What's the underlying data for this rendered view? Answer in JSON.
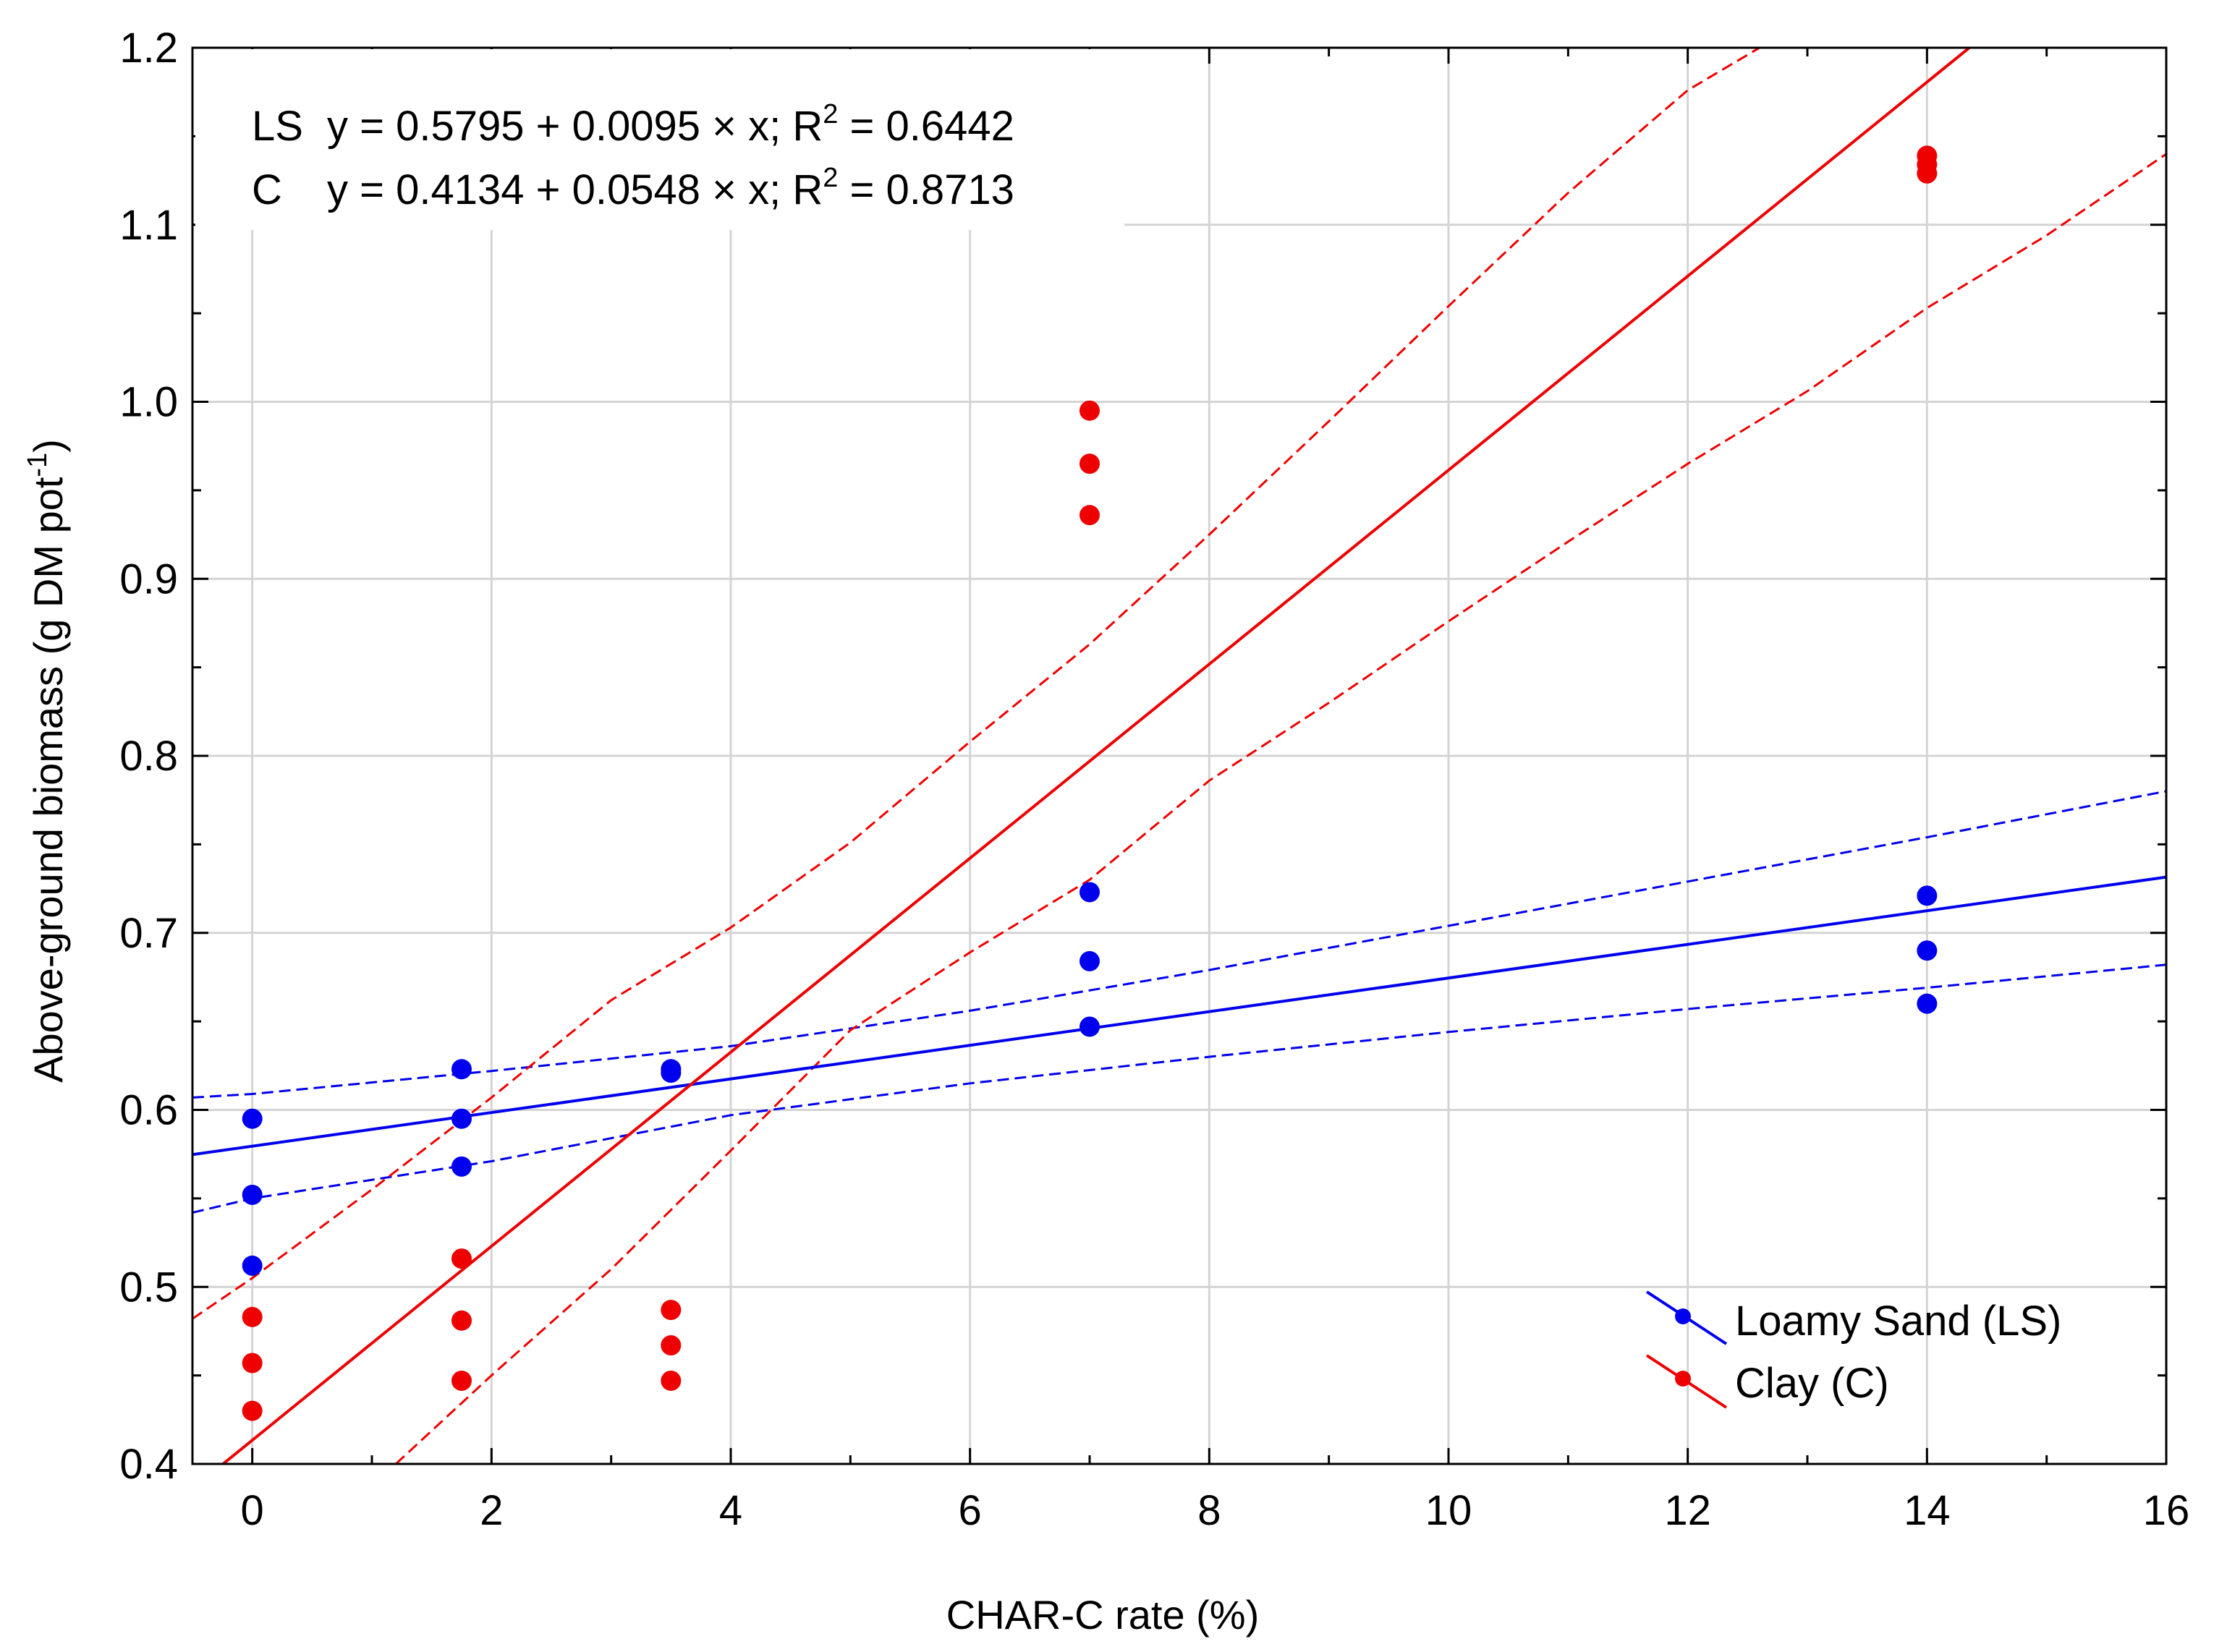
{
  "chart_data": {
    "type": "scatter",
    "xlabel": "CHAR-C rate (%)",
    "ylabel_main": "Above-ground biomass (g DM pot",
    "ylabel_sup": "-1",
    "ylabel_close": ")",
    "xlim": [
      -0.5,
      16
    ],
    "ylim": [
      0.4,
      1.2
    ],
    "x_ticks": [
      0,
      2,
      4,
      6,
      8,
      10,
      12,
      14,
      16
    ],
    "x_tick_labels": [
      "0",
      "2",
      "4",
      "6",
      "8",
      "10",
      "12",
      "14",
      "16"
    ],
    "y_ticks": [
      0.4,
      0.5,
      0.6,
      0.7,
      0.8,
      0.9,
      1.0,
      1.1,
      1.2
    ],
    "y_tick_labels": [
      "0.4",
      "0.5",
      "0.6",
      "0.7",
      "0.8",
      "0.9",
      "1.0",
      "1.1",
      "1.2"
    ],
    "grid": true,
    "legend_position": "bottom-right",
    "equations": [
      {
        "prefix": "LS",
        "text": "y = 0.5795 + 0.0095 × x; R",
        "sup": "2",
        "suffix": " = 0.6442"
      },
      {
        "prefix": "C",
        "text": "y = 0.4134 + 0.0548 × x; R",
        "sup": "2",
        "suffix": " = 0.8713"
      }
    ],
    "series": [
      {
        "name": "Loamy Sand (LS)",
        "color": "#0000ee",
        "intercept": 0.5795,
        "slope": 0.0095,
        "points": [
          {
            "x": 0,
            "y": 0.595
          },
          {
            "x": 0,
            "y": 0.552
          },
          {
            "x": 0,
            "y": 0.512
          },
          {
            "x": 1.75,
            "y": 0.623
          },
          {
            "x": 1.75,
            "y": 0.595
          },
          {
            "x": 1.75,
            "y": 0.568
          },
          {
            "x": 3.5,
            "y": 0.623
          },
          {
            "x": 3.5,
            "y": 0.621
          },
          {
            "x": 7,
            "y": 0.723
          },
          {
            "x": 7,
            "y": 0.684
          },
          {
            "x": 7,
            "y": 0.647
          },
          {
            "x": 14,
            "y": 0.721
          },
          {
            "x": 14,
            "y": 0.69
          },
          {
            "x": 14,
            "y": 0.66
          }
        ],
        "ci_upper": [
          [
            -0.5,
            0.607
          ],
          [
            0,
            0.609
          ],
          [
            2,
            0.622
          ],
          [
            4,
            0.636
          ],
          [
            6,
            0.656
          ],
          [
            8,
            0.679
          ],
          [
            10,
            0.704
          ],
          [
            12,
            0.729
          ],
          [
            14,
            0.754
          ],
          [
            16,
            0.78
          ]
        ],
        "ci_lower": [
          [
            -0.5,
            0.542
          ],
          [
            0,
            0.55
          ],
          [
            2,
            0.571
          ],
          [
            4,
            0.597
          ],
          [
            6,
            0.615
          ],
          [
            8,
            0.63
          ],
          [
            10,
            0.644
          ],
          [
            12,
            0.657
          ],
          [
            14,
            0.669
          ],
          [
            16,
            0.682
          ]
        ]
      },
      {
        "name": "Clay (C)",
        "color": "#ee0000",
        "intercept": 0.4134,
        "slope": 0.0548,
        "points": [
          {
            "x": 0,
            "y": 0.483
          },
          {
            "x": 0,
            "y": 0.457
          },
          {
            "x": 0,
            "y": 0.43
          },
          {
            "x": 1.75,
            "y": 0.516
          },
          {
            "x": 1.75,
            "y": 0.481
          },
          {
            "x": 1.75,
            "y": 0.447
          },
          {
            "x": 3.5,
            "y": 0.487
          },
          {
            "x": 3.5,
            "y": 0.467
          },
          {
            "x": 3.5,
            "y": 0.447
          },
          {
            "x": 7,
            "y": 0.995
          },
          {
            "x": 7,
            "y": 0.965
          },
          {
            "x": 7,
            "y": 0.936
          },
          {
            "x": 14,
            "y": 1.139
          },
          {
            "x": 14,
            "y": 1.134
          },
          {
            "x": 14,
            "y": 1.129
          }
        ],
        "ci_upper": [
          [
            -0.5,
            0.482
          ],
          [
            0,
            0.505
          ],
          [
            1,
            0.555
          ],
          [
            2,
            0.607
          ],
          [
            3,
            0.662
          ],
          [
            4,
            0.703
          ],
          [
            5,
            0.751
          ],
          [
            6,
            0.808
          ],
          [
            7,
            0.863
          ],
          [
            8,
            0.925
          ],
          [
            9,
            0.989
          ],
          [
            10,
            1.054
          ],
          [
            11,
            1.118
          ],
          [
            12,
            1.176
          ],
          [
            12.6,
            1.2
          ]
        ],
        "ci_lower": [
          [
            1.2,
            0.4
          ],
          [
            2,
            0.45
          ],
          [
            3,
            0.51
          ],
          [
            4,
            0.577
          ],
          [
            5,
            0.645
          ],
          [
            6,
            0.689
          ],
          [
            7,
            0.73
          ],
          [
            8,
            0.786
          ],
          [
            9,
            0.83
          ],
          [
            10,
            0.876
          ],
          [
            11,
            0.921
          ],
          [
            12,
            0.965
          ],
          [
            13,
            1.006
          ],
          [
            14,
            1.053
          ],
          [
            15,
            1.094
          ],
          [
            16,
            1.14
          ]
        ]
      }
    ]
  }
}
